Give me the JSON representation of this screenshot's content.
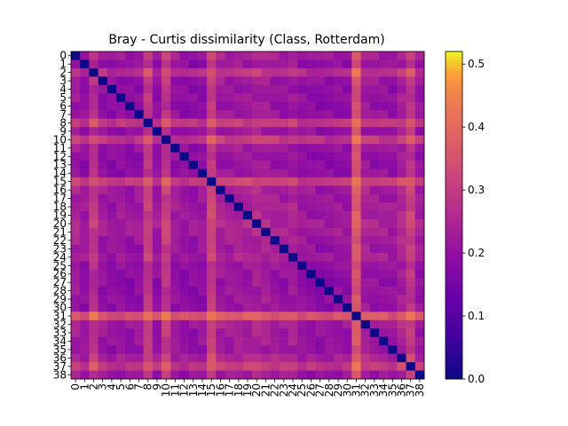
{
  "chart_data": {
    "type": "heatmap",
    "title": "Bray - Curtis dissimilarity (Class, Rotterdam)",
    "xlabel": "",
    "ylabel": "",
    "labels": [
      "0",
      "1",
      "2",
      "3",
      "4",
      "5",
      "6",
      "7",
      "8",
      "9",
      "10",
      "11",
      "12",
      "13",
      "14",
      "15",
      "16",
      "17",
      "18",
      "19",
      "20",
      "21",
      "22",
      "23",
      "24",
      "25",
      "26",
      "27",
      "28",
      "29",
      "30",
      "31",
      "32",
      "33",
      "34",
      "35",
      "36",
      "37",
      "38"
    ],
    "colormap": "plasma",
    "value_range": [
      0.0,
      0.52
    ],
    "colorbar_ticks": [
      "0.0",
      "0.1",
      "0.2",
      "0.3",
      "0.4",
      "0.5"
    ],
    "colorbar_tick_values": [
      0.0,
      0.1,
      0.2,
      0.3,
      0.4,
      0.5
    ],
    "row_profile": [
      0.2,
      0.16,
      0.27,
      0.17,
      0.15,
      0.16,
      0.15,
      0.16,
      0.3,
      0.16,
      0.3,
      0.17,
      0.15,
      0.15,
      0.16,
      0.32,
      0.2,
      0.19,
      0.2,
      0.2,
      0.22,
      0.21,
      0.19,
      0.18,
      0.2,
      0.16,
      0.16,
      0.15,
      0.15,
      0.16,
      0.16,
      0.4,
      0.2,
      0.18,
      0.18,
      0.17,
      0.22,
      0.3,
      0.18
    ],
    "notes_values": "Matrix is symmetric with a zero diagonal; cell (i,j) approximated from the row profiles of i and j as read off the heatmap."
  }
}
